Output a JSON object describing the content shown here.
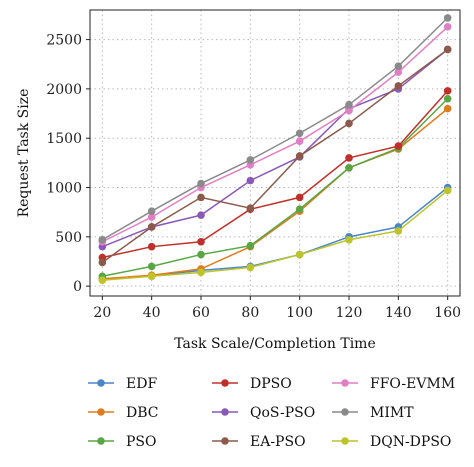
{
  "chart_data": {
    "type": "line",
    "xlabel": "Task Scale/Completion Time",
    "ylabel": "Request Task Size",
    "x": [
      20,
      40,
      60,
      80,
      100,
      120,
      140,
      160
    ],
    "xlim": [
      15,
      165
    ],
    "ylim": [
      -100,
      2800
    ],
    "xticks": [
      "20",
      "40",
      "60",
      "80",
      "100",
      "120",
      "140",
      "160"
    ],
    "yticks": [
      0,
      500,
      1000,
      1500,
      2000,
      2500
    ],
    "ytick_labels": [
      "0",
      "500",
      "1000",
      "1500",
      "2000",
      "2500"
    ],
    "grid": true,
    "legend_position": "bottom",
    "series": [
      {
        "name": "EDF",
        "color": "#4a86c8",
        "values": [
          75,
          105,
          160,
          200,
          320,
          500,
          600,
          1000
        ]
      },
      {
        "name": "DBC",
        "color": "#e07b1f",
        "values": [
          75,
          110,
          175,
          400,
          760,
          1200,
          1390,
          1800
        ]
      },
      {
        "name": "PSO",
        "color": "#5aa644",
        "values": [
          100,
          200,
          320,
          410,
          780,
          1200,
          1400,
          1900
        ]
      },
      {
        "name": "DPSO",
        "color": "#c0302a",
        "values": [
          290,
          400,
          450,
          780,
          900,
          1300,
          1420,
          1980
        ]
      },
      {
        "name": "QoS-PSO",
        "color": "#8a59b8",
        "values": [
          400,
          600,
          720,
          1070,
          1310,
          1800,
          2000,
          2400
        ]
      },
      {
        "name": "EA-PSO",
        "color": "#8b5a4a",
        "values": [
          240,
          600,
          900,
          790,
          1320,
          1650,
          2030,
          2400
        ]
      },
      {
        "name": "FFO-EVMM",
        "color": "#e07fc4",
        "values": [
          450,
          700,
          1000,
          1230,
          1470,
          1780,
          2170,
          2630
        ]
      },
      {
        "name": "MIMT",
        "color": "#8a8a8a",
        "values": [
          470,
          760,
          1040,
          1280,
          1550,
          1840,
          2230,
          2720
        ]
      },
      {
        "name": "DQN-DPSO",
        "color": "#bcc42a",
        "values": [
          60,
          100,
          140,
          190,
          320,
          470,
          560,
          970
        ]
      }
    ]
  }
}
